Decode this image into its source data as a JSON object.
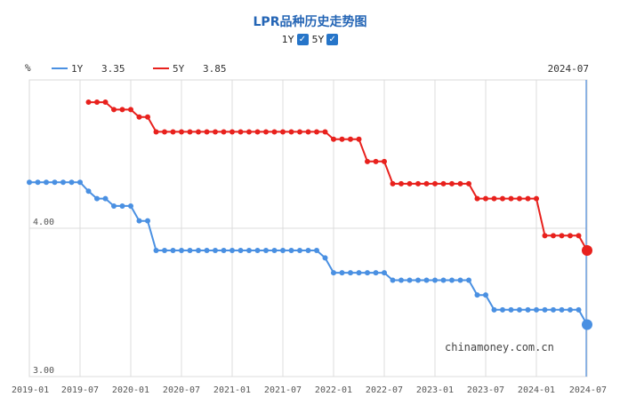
{
  "title": "LPR品种历史走势图",
  "toggles": [
    {
      "label": "1Y",
      "checked": true,
      "check_glyph": "✓"
    },
    {
      "label": "5Y",
      "checked": true,
      "check_glyph": "✓"
    }
  ],
  "legend": [
    {
      "name": "1Y",
      "value": "3.35",
      "color": "#4a90e2"
    },
    {
      "name": "5Y",
      "value": "3.85",
      "color": "#e8211d"
    }
  ],
  "unit_label": "%",
  "current_period_label": "2024-07",
  "watermark": "chinamoney.com.cn",
  "chart_data": {
    "type": "line",
    "x": [
      "2019-01",
      "2019-02",
      "2019-03",
      "2019-04",
      "2019-05",
      "2019-06",
      "2019-07",
      "2019-08",
      "2019-09",
      "2019-10",
      "2019-11",
      "2019-12",
      "2020-01",
      "2020-02",
      "2020-03",
      "2020-04",
      "2020-05",
      "2020-06",
      "2020-07",
      "2020-08",
      "2020-09",
      "2020-10",
      "2020-11",
      "2020-12",
      "2021-01",
      "2021-02",
      "2021-03",
      "2021-04",
      "2021-05",
      "2021-06",
      "2021-07",
      "2021-08",
      "2021-09",
      "2021-10",
      "2021-11",
      "2021-12",
      "2022-01",
      "2022-02",
      "2022-03",
      "2022-04",
      "2022-05",
      "2022-06",
      "2022-07",
      "2022-08",
      "2022-09",
      "2022-10",
      "2022-11",
      "2022-12",
      "2023-01",
      "2023-02",
      "2023-03",
      "2023-04",
      "2023-05",
      "2023-06",
      "2023-07",
      "2023-08",
      "2023-09",
      "2023-10",
      "2023-11",
      "2023-12",
      "2024-01",
      "2024-02",
      "2024-03",
      "2024-04",
      "2024-05",
      "2024-06",
      "2024-07"
    ],
    "series": [
      {
        "name": "1Y",
        "color": "#4a90e2",
        "values": [
          4.31,
          4.31,
          4.31,
          4.31,
          4.31,
          4.31,
          4.31,
          4.25,
          4.2,
          4.2,
          4.15,
          4.15,
          4.15,
          4.05,
          4.05,
          3.85,
          3.85,
          3.85,
          3.85,
          3.85,
          3.85,
          3.85,
          3.85,
          3.85,
          3.85,
          3.85,
          3.85,
          3.85,
          3.85,
          3.85,
          3.85,
          3.85,
          3.85,
          3.85,
          3.85,
          3.8,
          3.7,
          3.7,
          3.7,
          3.7,
          3.7,
          3.7,
          3.7,
          3.65,
          3.65,
          3.65,
          3.65,
          3.65,
          3.65,
          3.65,
          3.65,
          3.65,
          3.65,
          3.55,
          3.55,
          3.45,
          3.45,
          3.45,
          3.45,
          3.45,
          3.45,
          3.45,
          3.45,
          3.45,
          3.45,
          3.45,
          3.35
        ]
      },
      {
        "name": "5Y",
        "color": "#e8211d",
        "values": [
          null,
          null,
          null,
          null,
          null,
          null,
          null,
          4.85,
          4.85,
          4.85,
          4.8,
          4.8,
          4.8,
          4.75,
          4.75,
          4.65,
          4.65,
          4.65,
          4.65,
          4.65,
          4.65,
          4.65,
          4.65,
          4.65,
          4.65,
          4.65,
          4.65,
          4.65,
          4.65,
          4.65,
          4.65,
          4.65,
          4.65,
          4.65,
          4.65,
          4.65,
          4.6,
          4.6,
          4.6,
          4.6,
          4.45,
          4.45,
          4.45,
          4.3,
          4.3,
          4.3,
          4.3,
          4.3,
          4.3,
          4.3,
          4.3,
          4.3,
          4.3,
          4.2,
          4.2,
          4.2,
          4.2,
          4.2,
          4.2,
          4.2,
          4.2,
          3.95,
          3.95,
          3.95,
          3.95,
          3.95,
          3.85
        ]
      }
    ],
    "y_ticks": [
      "4.00",
      "3.00"
    ],
    "x_ticks": [
      "2019-01",
      "2019-07",
      "2020-01",
      "2020-07",
      "2021-01",
      "2021-07",
      "2022-01",
      "2022-07",
      "2023-01",
      "2023-07",
      "2024-01",
      "2024-07"
    ],
    "ylim": [
      3.0,
      5.0
    ],
    "grid": true
  }
}
